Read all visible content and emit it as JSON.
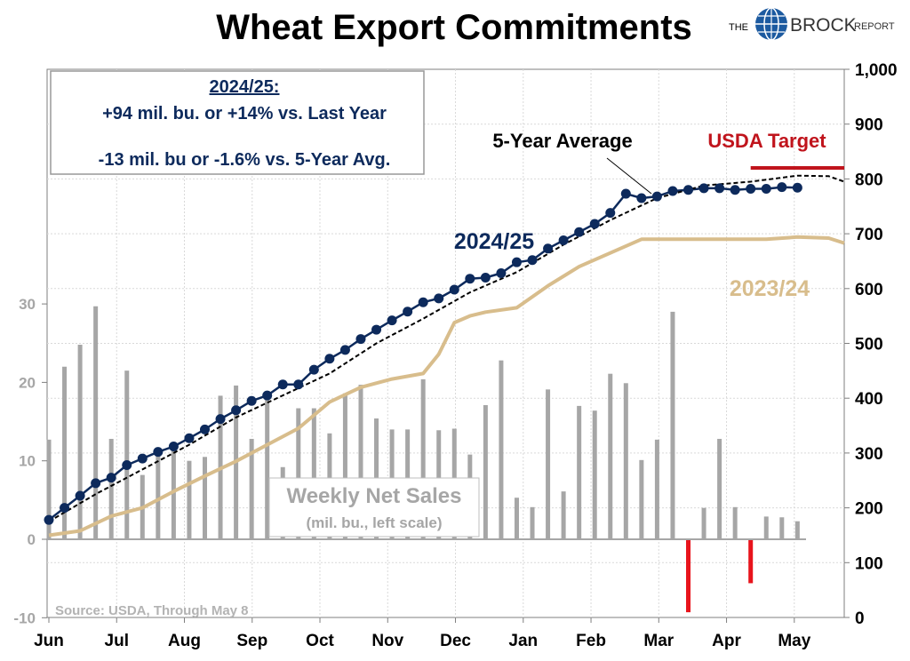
{
  "header": {
    "title": "Wheat Export Commitments",
    "brand_the": "THE",
    "brand_name": "BROCK",
    "brand_report": "REPORT"
  },
  "info_box": {
    "heading": "2024/25:",
    "line1": "+94 mil. bu. or +14% vs. Last Year",
    "line2": "-13 mil. bu or -1.6% vs. 5-Year Avg."
  },
  "annotations": {
    "five_year": "5-Year Average",
    "usda": "USDA Target",
    "current": "2024/25",
    "last_year": "2023/24",
    "weekly_title": "Weekly Net Sales",
    "weekly_sub": "(mil. bu., left scale)",
    "source": "Source: USDA, Through May 8"
  },
  "colors": {
    "current": "#0d2a5c",
    "five_year": "#000000",
    "last_year": "#d8bd8c",
    "bars": "#a6a6a6",
    "negative_bars": "#e8141c",
    "usda": "#c0141c",
    "grid": "#d9d9d9"
  },
  "chart_data": {
    "type": "line",
    "x_ticks": [
      "Jun",
      "Jul",
      "Aug",
      "Sep",
      "Oct",
      "Nov",
      "Dec",
      "Jan",
      "Feb",
      "Mar",
      "Apr",
      "May"
    ],
    "x_unit": "weeks from start of June",
    "x_range": [
      0,
      51
    ],
    "y_right": {
      "range": [
        0,
        1000
      ],
      "ticks": [
        "0",
        "100",
        "200",
        "300",
        "400",
        "500",
        "600",
        "700",
        "800",
        "900",
        "1,000"
      ]
    },
    "y_left": {
      "range": [
        -10,
        60
      ],
      "ticks": [
        "-10",
        "0",
        "10",
        "20",
        "30"
      ]
    },
    "usda_target": {
      "value": 820,
      "x_range": [
        45,
        51
      ]
    },
    "series": [
      {
        "name": "2024/25",
        "x": [
          0,
          1,
          2,
          3,
          4,
          5,
          6,
          7,
          8,
          9,
          10,
          11,
          12,
          13,
          14,
          15,
          16,
          17,
          18,
          19,
          20,
          21,
          22,
          23,
          24,
          25,
          26,
          27,
          28,
          29,
          30,
          31,
          32,
          33,
          34,
          35,
          36,
          37,
          38,
          39,
          40,
          41,
          42,
          43,
          44,
          45,
          46,
          47,
          48
        ],
        "values": [
          178,
          200,
          222,
          245,
          255,
          278,
          290,
          302,
          312,
          327,
          343,
          362,
          378,
          395,
          405,
          425,
          425,
          452,
          472,
          488,
          508,
          525,
          542,
          558,
          575,
          582,
          598,
          618,
          620,
          628,
          648,
          652,
          673,
          688,
          703,
          718,
          738,
          773,
          765,
          768,
          778,
          780,
          783,
          783,
          780,
          782,
          782,
          785,
          784
        ]
      },
      {
        "name": "5-Year Average",
        "x": [
          0,
          3,
          6,
          9,
          12,
          15,
          18,
          21,
          24,
          27,
          30,
          33,
          36,
          39,
          42,
          45,
          48,
          50,
          51
        ],
        "values": [
          175,
          225,
          270,
          315,
          365,
          405,
          445,
          500,
          545,
          593,
          630,
          680,
          725,
          765,
          788,
          795,
          806,
          805,
          795
        ]
      },
      {
        "name": "2023/24",
        "x": [
          0,
          2,
          4,
          6,
          8,
          10,
          12,
          14,
          16,
          18,
          20,
          22,
          24,
          25,
          26,
          27,
          28,
          30,
          32,
          34,
          36,
          38,
          40,
          42,
          44,
          46,
          48,
          50,
          51
        ],
        "values": [
          150,
          158,
          185,
          200,
          230,
          258,
          285,
          315,
          345,
          393,
          420,
          435,
          445,
          480,
          538,
          550,
          557,
          565,
          605,
          640,
          665,
          690,
          690,
          690,
          690,
          690,
          694,
          692,
          683
        ]
      }
    ],
    "weekly_net_sales": {
      "x": [
        0,
        1,
        2,
        3,
        4,
        5,
        6,
        7,
        8,
        9,
        10,
        11,
        12,
        13,
        14,
        15,
        16,
        17,
        18,
        19,
        20,
        21,
        22,
        23,
        24,
        25,
        26,
        27,
        28,
        29,
        30,
        31,
        32,
        33,
        34,
        35,
        36,
        37,
        38,
        39,
        40,
        41,
        42,
        43,
        44,
        45,
        46,
        47,
        48
      ],
      "values": [
        12.7,
        22.0,
        24.8,
        29.7,
        12.8,
        21.5,
        8.2,
        11.4,
        11.4,
        10.0,
        10.5,
        18.3,
        19.6,
        12.8,
        17.9,
        9.2,
        16.7,
        16.7,
        13.5,
        18.6,
        19.7,
        15.4,
        14.0,
        14.0,
        20.4,
        13.9,
        14.1,
        10.8,
        17.1,
        22.8,
        5.3,
        4.1,
        19.1,
        6.1,
        17.0,
        16.4,
        21.1,
        19.9,
        10.1,
        12.7,
        29.0,
        -9.3,
        4.0,
        12.8,
        4.1,
        -5.6,
        2.9,
        2.8,
        2.3
      ]
    }
  }
}
